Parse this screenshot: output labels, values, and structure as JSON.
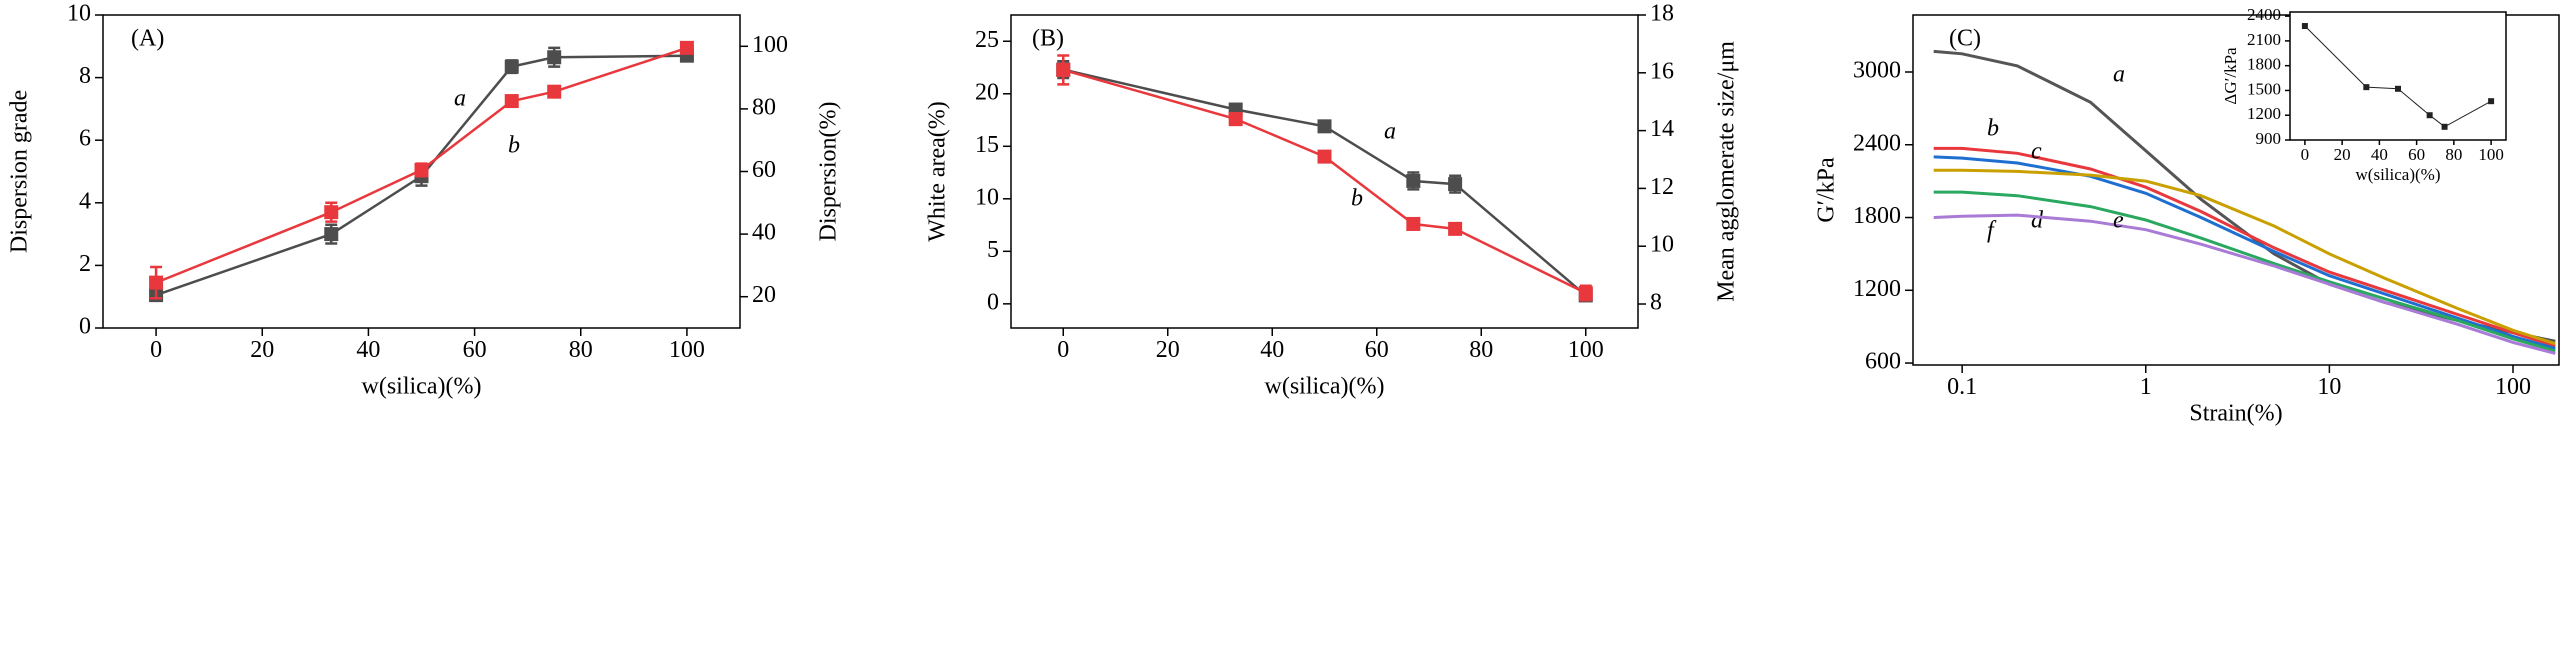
{
  "chart_data": [
    {
      "type": "line",
      "xlabel": "w(silica)(%)",
      "ylabel": "Dispersion grade",
      "y2label": "Dispersion(%)",
      "x": [
        0,
        33,
        50,
        67,
        75,
        100
      ],
      "xlim": [
        -10,
        110
      ],
      "xticks": [
        0,
        20,
        40,
        60,
        80,
        100
      ],
      "ylim": [
        0,
        10
      ],
      "yticks": [
        0,
        2,
        4,
        6,
        8,
        10
      ],
      "y2lim": [
        10,
        110
      ],
      "y2ticks": [
        20,
        40,
        60,
        80,
        100
      ],
      "annotations": [
        "(A)"
      ],
      "series": [
        {
          "name": "a",
          "color": "#4d4d4d",
          "values": [
            1.05,
            3.0,
            4.85,
            8.35,
            8.65,
            8.7
          ],
          "errors": [
            0.1,
            0.3,
            0.3,
            0.2,
            0.3,
            0.1
          ]
        },
        {
          "name": "b",
          "color": "#e8383d",
          "axis": "y2",
          "values": [
            24.5,
            47,
            60.5,
            82.5,
            85.5,
            99.5
          ],
          "errors": [
            5,
            3,
            2,
            1,
            1,
            1
          ]
        }
      ]
    },
    {
      "type": "line",
      "xlabel": "w(silica)(%)",
      "ylabel": "White area(%)",
      "y2label": "Mean agglomerate size/μm",
      "x": [
        0,
        33,
        50,
        67,
        75,
        100
      ],
      "xlim": [
        -10,
        110
      ],
      "xticks": [
        0,
        20,
        40,
        60,
        80,
        100
      ],
      "ylim": [
        -2.3,
        27.5
      ],
      "yticks": [
        0,
        5,
        10,
        15,
        20,
        25
      ],
      "y2lim": [
        7.17,
        18
      ],
      "y2ticks": [
        8,
        10,
        12,
        14,
        16,
        18
      ],
      "annotations": [
        "(B)"
      ],
      "series": [
        {
          "name": "a",
          "color": "#4d4d4d",
          "values": [
            22.3,
            18.5,
            16.9,
            11.7,
            11.4,
            0.8
          ],
          "errors": [
            0.8,
            0.5,
            0.4,
            0.8,
            0.8,
            0.4
          ]
        },
        {
          "name": "b",
          "color": "#e8383d",
          "axis": "y2",
          "values": [
            16.1,
            14.4,
            13.1,
            10.77,
            10.6,
            8.38
          ],
          "errors": [
            0.5,
            0.2,
            0.15,
            0.15,
            0.15,
            0.25
          ]
        }
      ]
    },
    {
      "type": "line",
      "xlabel": "Strain(%)",
      "ylabel": "G′/kPa",
      "xlog": true,
      "x": [
        0.07,
        0.1,
        0.2,
        0.5,
        1,
        2,
        5,
        10,
        20,
        50,
        100,
        170
      ],
      "xlim": [
        0.054,
        178
      ],
      "xticks": [
        0.1,
        1,
        10,
        100
      ],
      "ylim": [
        584,
        3470
      ],
      "yticks": [
        600,
        1200,
        1800,
        2400,
        3000
      ],
      "annotations": [
        "(C)"
      ],
      "series": [
        {
          "name": "a",
          "color": "#555555",
          "values": [
            3170,
            3150,
            3050,
            2750,
            2350,
            1950,
            1500,
            1250,
            1100,
            950,
            850,
            780
          ]
        },
        {
          "name": "b",
          "color": "#e8383d",
          "values": [
            2370,
            2370,
            2330,
            2200,
            2050,
            1850,
            1550,
            1350,
            1200,
            1000,
            850,
            740
          ]
        },
        {
          "name": "c",
          "color": "#1f6fd1",
          "values": [
            2300,
            2290,
            2250,
            2140,
            2000,
            1800,
            1520,
            1320,
            1170,
            970,
            820,
            720
          ]
        },
        {
          "name": "d",
          "color": "#2aa860",
          "values": [
            2010,
            2010,
            1980,
            1890,
            1780,
            1630,
            1420,
            1270,
            1130,
            950,
            800,
            700
          ]
        },
        {
          "name": "e",
          "color": "#a97ad6",
          "values": [
            1800,
            1810,
            1820,
            1770,
            1700,
            1580,
            1400,
            1250,
            1100,
            920,
            770,
            680
          ]
        },
        {
          "name": "f",
          "color": "#c9a000",
          "values": [
            2190,
            2190,
            2180,
            2150,
            2100,
            1980,
            1730,
            1500,
            1300,
            1050,
            870,
            760
          ]
        }
      ]
    },
    {
      "type": "scatter",
      "xlabel": "w(silica)(%)",
      "ylabel": "ΔG′/kPa",
      "x": [
        0,
        33,
        50,
        67,
        75,
        100
      ],
      "xlim": [
        -8,
        108
      ],
      "xticks": [
        0,
        20,
        40,
        60,
        80,
        100
      ],
      "ylim": [
        900,
        2450
      ],
      "yticks": [
        900,
        1200,
        1500,
        1800,
        2100,
        2400
      ],
      "series": [
        {
          "color": "#222222",
          "values": [
            2280,
            1540,
            1520,
            1200,
            1060,
            1370
          ]
        }
      ]
    }
  ]
}
